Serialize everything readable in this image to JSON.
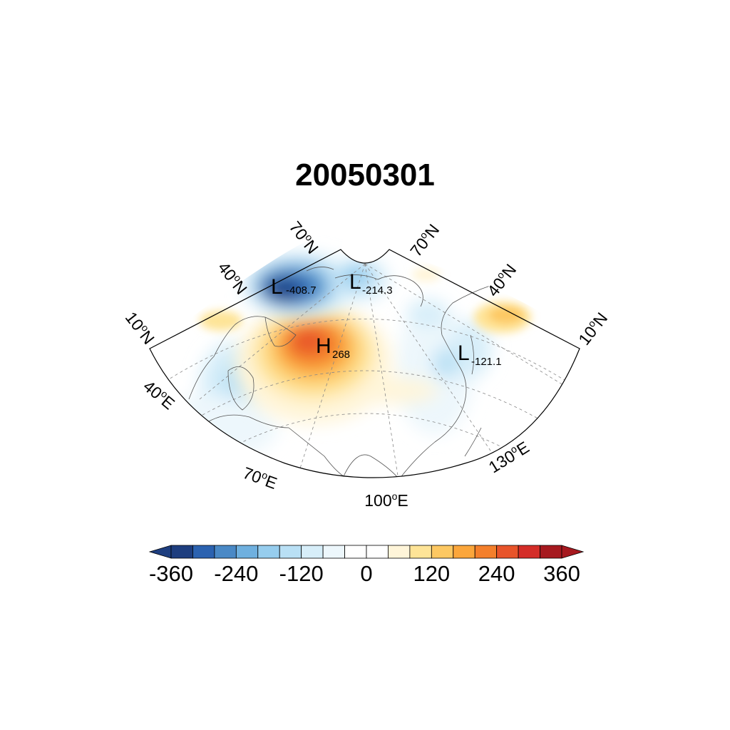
{
  "title": "20050301",
  "map": {
    "projection": "polar stereographic sector",
    "lat_labels_left": [
      "10",
      "40",
      "70"
    ],
    "lat_labels_right": [
      "70",
      "40",
      "10"
    ],
    "lon_labels": [
      "40",
      "70",
      "100",
      "130"
    ],
    "lat_hemisphere": "N",
    "lon_hemisphere": "E",
    "degree_symbol": "o",
    "extremes": [
      {
        "type": "L",
        "value": "-408.7"
      },
      {
        "type": "L",
        "value": "-214.3"
      },
      {
        "type": "H",
        "value": "268"
      },
      {
        "type": "L",
        "value": "-121.1"
      }
    ]
  },
  "colorbar": {
    "levels": [
      -360,
      -320,
      -280,
      -240,
      -200,
      -160,
      -120,
      -80,
      -40,
      0,
      40,
      80,
      120,
      160,
      200,
      240,
      280,
      320,
      360
    ],
    "labels": [
      "-360",
      "-240",
      "-120",
      "0",
      "120",
      "240",
      "360"
    ],
    "colors": [
      "#1e3e7f",
      "#2b62b0",
      "#4a89c6",
      "#6fb0df",
      "#96cdee",
      "#b9e0f5",
      "#d7eef9",
      "#edf7fc",
      "#ffffff",
      "#ffffff",
      "#fff5d9",
      "#fee497",
      "#fdc862",
      "#fba63b",
      "#f47f2b",
      "#e8542a",
      "#d42d28",
      "#a6191f"
    ],
    "extends": "both"
  }
}
